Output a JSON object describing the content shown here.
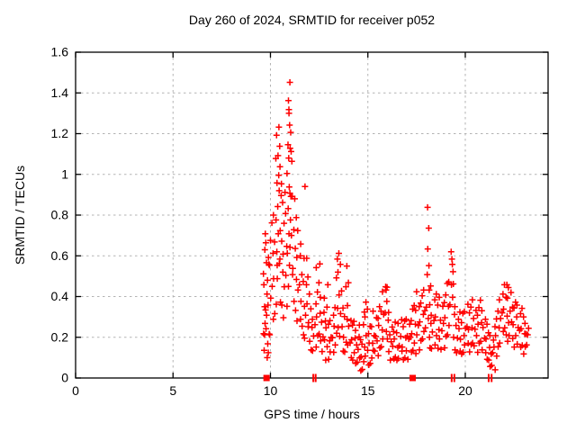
{
  "chart_data": {
    "type": "scatter",
    "title": "Day 260 of 2024, SRMTID for receiver p052",
    "xlabel": "GPS time / hours",
    "ylabel": "SRMTID / TECUs",
    "xlim": [
      0,
      24.25
    ],
    "ylim": [
      0,
      1.6
    ],
    "xticks": [
      0,
      5,
      10,
      15,
      20
    ],
    "xtick_labels": [
      "0",
      "5",
      "10",
      "15",
      "20"
    ],
    "yticks": [
      0,
      0.2,
      0.4,
      0.6,
      0.8,
      1,
      1.2,
      1.4,
      1.6
    ],
    "ytick_labels": [
      "0",
      "0.2",
      "0.4",
      "0.6",
      "0.8",
      "1",
      "1.2",
      "1.4",
      "1.6"
    ],
    "grid": "dashed",
    "grid_color": "#b3b3b3",
    "legend": "none",
    "marker": {
      "glyph": "plus",
      "color": "#ff0000",
      "size": 7
    },
    "series_name": "SRMTID",
    "columns_format": "first element = GPS hour, remaining elements = SRMTID values (TECUs) observed near that hour",
    "columns": [
      [
        9.65,
        0.21,
        0.35,
        0.52
      ],
      [
        9.7,
        0.14,
        0.28,
        0.45,
        0.63
      ],
      [
        9.75,
        0.2,
        0.33,
        0.57,
        0.72
      ],
      [
        9.8,
        0.1,
        0.25,
        0.4,
        0.66
      ],
      [
        9.85,
        0.18,
        0.3,
        0.48,
        0.6
      ],
      [
        9.9,
        0.12,
        0.22,
        0.37,
        0.55
      ],
      [
        10.0,
        0.22,
        0.38,
        0.55,
        0.68
      ],
      [
        10.1,
        0.28,
        0.45,
        0.62,
        0.75
      ],
      [
        10.2,
        0.32,
        0.5,
        0.66,
        0.8
      ],
      [
        10.3,
        0.35,
        0.55,
        0.78,
        0.97,
        1.07
      ],
      [
        10.35,
        0.62,
        0.85,
        1.18
      ],
      [
        10.4,
        0.5,
        0.7,
        0.92,
        1.1,
        1.22
      ],
      [
        10.45,
        0.58,
        1.0,
        1.15
      ],
      [
        10.5,
        0.38,
        0.55,
        0.72,
        0.9,
        1.05
      ],
      [
        10.6,
        0.35,
        0.52,
        0.68,
        0.85,
        0.95
      ],
      [
        10.7,
        0.3,
        0.46,
        0.6,
        0.76,
        0.92
      ],
      [
        10.8,
        0.34,
        0.5,
        0.65,
        0.82
      ],
      [
        10.9,
        0.45,
        0.62,
        0.82,
        1.0,
        1.15,
        1.33
      ],
      [
        10.95,
        0.72,
        0.9,
        1.08,
        1.25,
        1.35
      ],
      [
        11.0,
        0.55,
        0.78,
        0.95,
        1.12,
        1.3,
        1.46
      ],
      [
        11.05,
        0.65,
        0.88,
        1.06,
        1.21
      ],
      [
        11.1,
        0.5,
        0.7,
        0.9,
        1.1
      ],
      [
        11.2,
        0.38,
        0.55,
        0.72,
        0.88
      ],
      [
        11.3,
        0.32,
        0.48,
        0.64,
        0.8
      ],
      [
        11.4,
        0.28,
        0.44,
        0.58,
        0.72
      ],
      [
        11.5,
        0.3,
        0.45,
        0.6
      ],
      [
        11.6,
        0.25,
        0.38,
        0.52,
        0.65
      ],
      [
        11.7,
        0.22,
        0.34,
        0.47
      ],
      [
        11.75,
        0.58,
        0.94
      ],
      [
        11.8,
        0.2,
        0.32,
        0.45
      ],
      [
        11.9,
        0.24,
        0.36,
        0.5,
        0.6
      ],
      [
        12.0,
        0.18,
        0.28,
        0.4
      ],
      [
        12.1,
        0.15,
        0.24,
        0.34
      ],
      [
        12.2,
        0.13,
        0.21,
        0.3
      ],
      [
        12.3,
        0.16,
        0.25,
        0.36
      ],
      [
        12.4,
        0.2,
        0.3,
        0.43,
        0.53
      ],
      [
        12.5,
        0.22,
        0.33,
        0.46,
        0.56
      ],
      [
        12.6,
        0.17,
        0.27,
        0.4
      ],
      [
        12.7,
        0.13,
        0.21,
        0.31
      ],
      [
        12.8,
        0.1,
        0.18,
        0.28,
        0.4
      ],
      [
        12.9,
        0.15,
        0.25,
        0.36,
        0.45
      ],
      [
        13.0,
        0.1,
        0.17,
        0.26
      ],
      [
        13.1,
        0.12,
        0.2,
        0.29
      ],
      [
        13.2,
        0.13,
        0.21,
        0.3
      ],
      [
        13.3,
        0.15,
        0.25,
        0.35
      ],
      [
        13.4,
        0.22,
        0.35,
        0.48,
        0.58
      ],
      [
        13.5,
        0.26,
        0.4,
        0.52,
        0.62
      ],
      [
        13.6,
        0.2,
        0.32,
        0.44,
        0.55
      ],
      [
        13.7,
        0.14,
        0.24,
        0.34
      ],
      [
        13.8,
        0.12,
        0.2,
        0.31
      ],
      [
        13.9,
        0.18,
        0.3,
        0.44,
        0.55
      ],
      [
        14.0,
        0.15,
        0.25,
        0.36,
        0.48
      ],
      [
        14.1,
        0.1,
        0.18,
        0.27
      ],
      [
        14.2,
        0.1,
        0.18,
        0.26
      ],
      [
        14.3,
        0.12,
        0.2,
        0.29
      ],
      [
        14.4,
        0.08,
        0.15,
        0.23
      ],
      [
        14.5,
        0.07,
        0.14,
        0.21
      ],
      [
        14.6,
        0.04,
        0.11,
        0.18,
        0.26
      ],
      [
        14.7,
        0.03,
        0.1,
        0.17
      ],
      [
        14.8,
        0.08,
        0.16,
        0.25,
        0.32
      ],
      [
        14.9,
        0.12,
        0.2,
        0.3,
        0.38
      ],
      [
        15.0,
        0.06,
        0.14,
        0.23,
        0.33
      ],
      [
        15.1,
        0.08,
        0.16,
        0.25
      ],
      [
        15.2,
        0.09,
        0.17,
        0.26
      ],
      [
        15.3,
        0.14,
        0.22,
        0.32
      ],
      [
        15.4,
        0.12,
        0.2,
        0.3
      ],
      [
        15.5,
        0.11,
        0.19,
        0.28
      ],
      [
        15.6,
        0.16,
        0.25,
        0.35
      ],
      [
        15.7,
        0.15,
        0.24,
        0.34
      ],
      [
        15.8,
        0.2,
        0.3,
        0.42
      ],
      [
        15.9,
        0.22,
        0.32,
        0.44
      ],
      [
        15.95,
        0.38,
        0.46
      ],
      [
        16.0,
        0.18,
        0.28,
        0.45
      ],
      [
        16.1,
        0.13,
        0.22,
        0.31
      ],
      [
        16.2,
        0.1,
        0.17,
        0.25
      ],
      [
        16.3,
        0.09,
        0.16,
        0.24
      ],
      [
        16.4,
        0.11,
        0.18,
        0.27
      ],
      [
        16.5,
        0.08,
        0.15,
        0.23
      ],
      [
        16.6,
        0.1,
        0.17,
        0.26
      ],
      [
        16.7,
        0.12,
        0.2,
        0.29
      ],
      [
        16.8,
        0.09,
        0.16,
        0.24
      ],
      [
        16.9,
        0.11,
        0.19,
        0.28
      ],
      [
        17.0,
        0.13,
        0.21,
        0.3
      ],
      [
        17.1,
        0.1,
        0.18,
        0.26
      ],
      [
        17.2,
        0.12,
        0.2,
        0.29
      ],
      [
        17.3,
        0.14,
        0.23,
        0.33
      ],
      [
        17.4,
        0.16,
        0.26,
        0.36
      ],
      [
        17.5,
        0.12,
        0.22,
        0.32,
        0.42
      ],
      [
        17.6,
        0.15,
        0.25,
        0.35
      ],
      [
        17.7,
        0.18,
        0.28,
        0.38
      ],
      [
        17.8,
        0.2,
        0.3,
        0.4
      ],
      [
        17.9,
        0.22,
        0.33,
        0.44
      ],
      [
        18.0,
        0.25,
        0.36,
        0.5
      ],
      [
        18.1,
        0.54,
        0.63,
        0.74,
        0.85
      ],
      [
        18.15,
        0.2,
        0.3,
        0.42
      ],
      [
        18.2,
        0.16,
        0.26,
        0.36,
        0.46
      ],
      [
        18.3,
        0.14,
        0.23,
        0.32
      ],
      [
        18.4,
        0.17,
        0.27,
        0.38
      ],
      [
        18.5,
        0.2,
        0.3,
        0.42
      ],
      [
        18.6,
        0.15,
        0.25,
        0.35
      ],
      [
        18.7,
        0.18,
        0.28,
        0.4
      ],
      [
        18.8,
        0.14,
        0.24,
        0.34
      ],
      [
        18.9,
        0.16,
        0.26,
        0.37
      ],
      [
        19.0,
        0.2,
        0.3,
        0.42
      ],
      [
        19.1,
        0.22,
        0.34,
        0.46
      ],
      [
        19.2,
        0.25,
        0.36,
        0.48
      ],
      [
        19.3,
        0.4,
        0.47,
        0.55,
        0.62
      ],
      [
        19.35,
        0.51,
        0.58
      ],
      [
        19.4,
        0.2,
        0.32,
        0.45
      ],
      [
        19.5,
        0.15,
        0.25,
        0.35
      ],
      [
        19.6,
        0.12,
        0.2,
        0.3
      ],
      [
        19.7,
        0.14,
        0.23,
        0.32
      ],
      [
        19.8,
        0.11,
        0.19,
        0.28
      ],
      [
        19.9,
        0.13,
        0.22,
        0.31
      ],
      [
        20.0,
        0.15,
        0.24,
        0.33
      ],
      [
        20.1,
        0.17,
        0.26,
        0.35
      ],
      [
        20.2,
        0.14,
        0.23,
        0.32
      ],
      [
        20.3,
        0.16,
        0.25,
        0.36
      ],
      [
        20.4,
        0.18,
        0.28,
        0.38
      ],
      [
        20.5,
        0.15,
        0.24,
        0.34
      ],
      [
        20.6,
        0.13,
        0.22,
        0.3
      ],
      [
        20.7,
        0.16,
        0.26,
        0.35
      ],
      [
        20.8,
        0.18,
        0.28,
        0.37
      ],
      [
        20.9,
        0.15,
        0.24,
        0.33
      ],
      [
        21.0,
        0.12,
        0.2,
        0.3
      ],
      [
        21.1,
        0.1,
        0.18,
        0.26
      ],
      [
        21.2,
        0.08,
        0.15,
        0.23
      ],
      [
        21.3,
        0.06,
        0.13,
        0.2
      ],
      [
        21.4,
        0.05,
        0.12,
        0.19
      ],
      [
        21.5,
        0.04,
        0.16,
        0.24
      ],
      [
        21.6,
        0.12,
        0.2,
        0.29
      ],
      [
        21.7,
        0.15,
        0.25,
        0.34
      ],
      [
        21.8,
        0.18,
        0.28,
        0.38
      ],
      [
        21.9,
        0.22,
        0.32,
        0.42
      ],
      [
        22.0,
        0.25,
        0.35,
        0.45
      ],
      [
        22.1,
        0.2,
        0.3,
        0.4,
        0.47
      ],
      [
        22.2,
        0.18,
        0.28,
        0.38,
        0.44
      ],
      [
        22.3,
        0.22,
        0.32,
        0.42
      ],
      [
        22.4,
        0.19,
        0.28,
        0.36
      ],
      [
        22.5,
        0.16,
        0.25,
        0.34
      ],
      [
        22.6,
        0.2,
        0.3,
        0.38
      ],
      [
        22.7,
        0.17,
        0.26,
        0.35
      ],
      [
        22.8,
        0.14,
        0.23,
        0.32
      ],
      [
        22.9,
        0.16,
        0.25,
        0.33
      ],
      [
        23.0,
        0.13,
        0.21,
        0.3
      ],
      [
        23.1,
        0.15,
        0.22,
        0.28
      ],
      [
        23.2,
        0.17,
        0.2,
        0.24
      ]
    ],
    "axis_markers": {
      "description": "red markers drawn on the x-axis baseline (y=0)",
      "squares_at_hours": [
        9.8,
        17.3
      ],
      "tick_pairs_at_hours": [
        12.2,
        12.32,
        19.3,
        19.44,
        21.2,
        21.35
      ],
      "color": "#ff0000"
    }
  }
}
